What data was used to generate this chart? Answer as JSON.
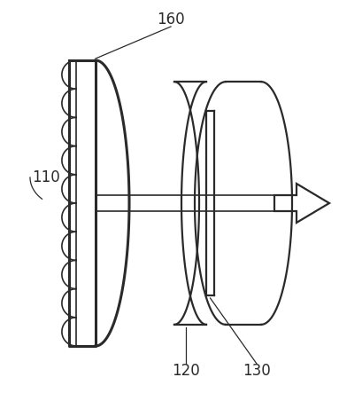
{
  "bg_color": "#ffffff",
  "line_color": "#2a2a2a",
  "label_color": "#2a2a2a",
  "font_size": 12,
  "fig_w": 3.83,
  "fig_h": 4.43,
  "dpi": 100
}
